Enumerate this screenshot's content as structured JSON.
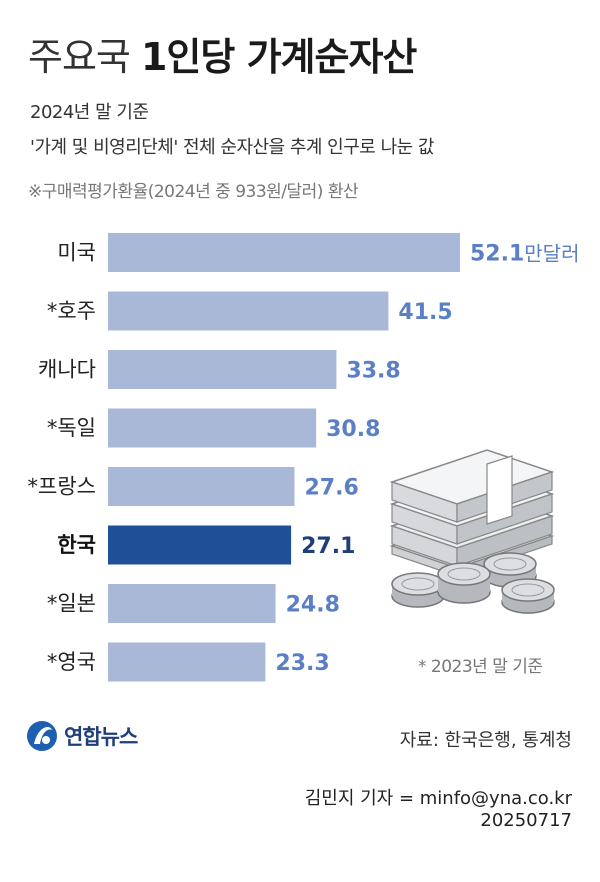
{
  "header": {
    "title_light": "주요국",
    "title_bold": "1인당 가계순자산",
    "subtitle1": "2024년 말 기준",
    "subtitle2": "'가계 및 비영리단체' 전체 순자산을 추계 인구로 나눈 값",
    "note": "※구매력평가환율(2024년 중 933원/달러) 환산"
  },
  "chart_data": {
    "type": "bar",
    "orientation": "horizontal",
    "categories": [
      "미국",
      "*호주",
      "캐나다",
      "*독일",
      "*프랑스",
      "한국",
      "*일본",
      "*영국"
    ],
    "values": [
      52.1,
      41.5,
      33.8,
      30.8,
      27.6,
      27.1,
      24.8,
      23.3
    ],
    "value_labels": [
      "52.1",
      "41.5",
      "33.8",
      "30.8",
      "27.6",
      "27.1",
      "24.8",
      "23.3"
    ],
    "unit": "만달러",
    "highlight_index": 5,
    "colors": {
      "bar": "#aab8d8",
      "bar_highlight": "#1f4f96",
      "value": "#5b7fc4",
      "value_highlight": "#1f3f7a"
    }
  },
  "footnote": "* 2023년 말 기준",
  "footer": {
    "logo_text": "연합뉴스",
    "logo_icon": "yonhap-logo-icon",
    "source": "자료: 한국은행, 통계청",
    "credit": "김민지 기자 = minfo@yna.co.kr",
    "date": "20250717"
  }
}
